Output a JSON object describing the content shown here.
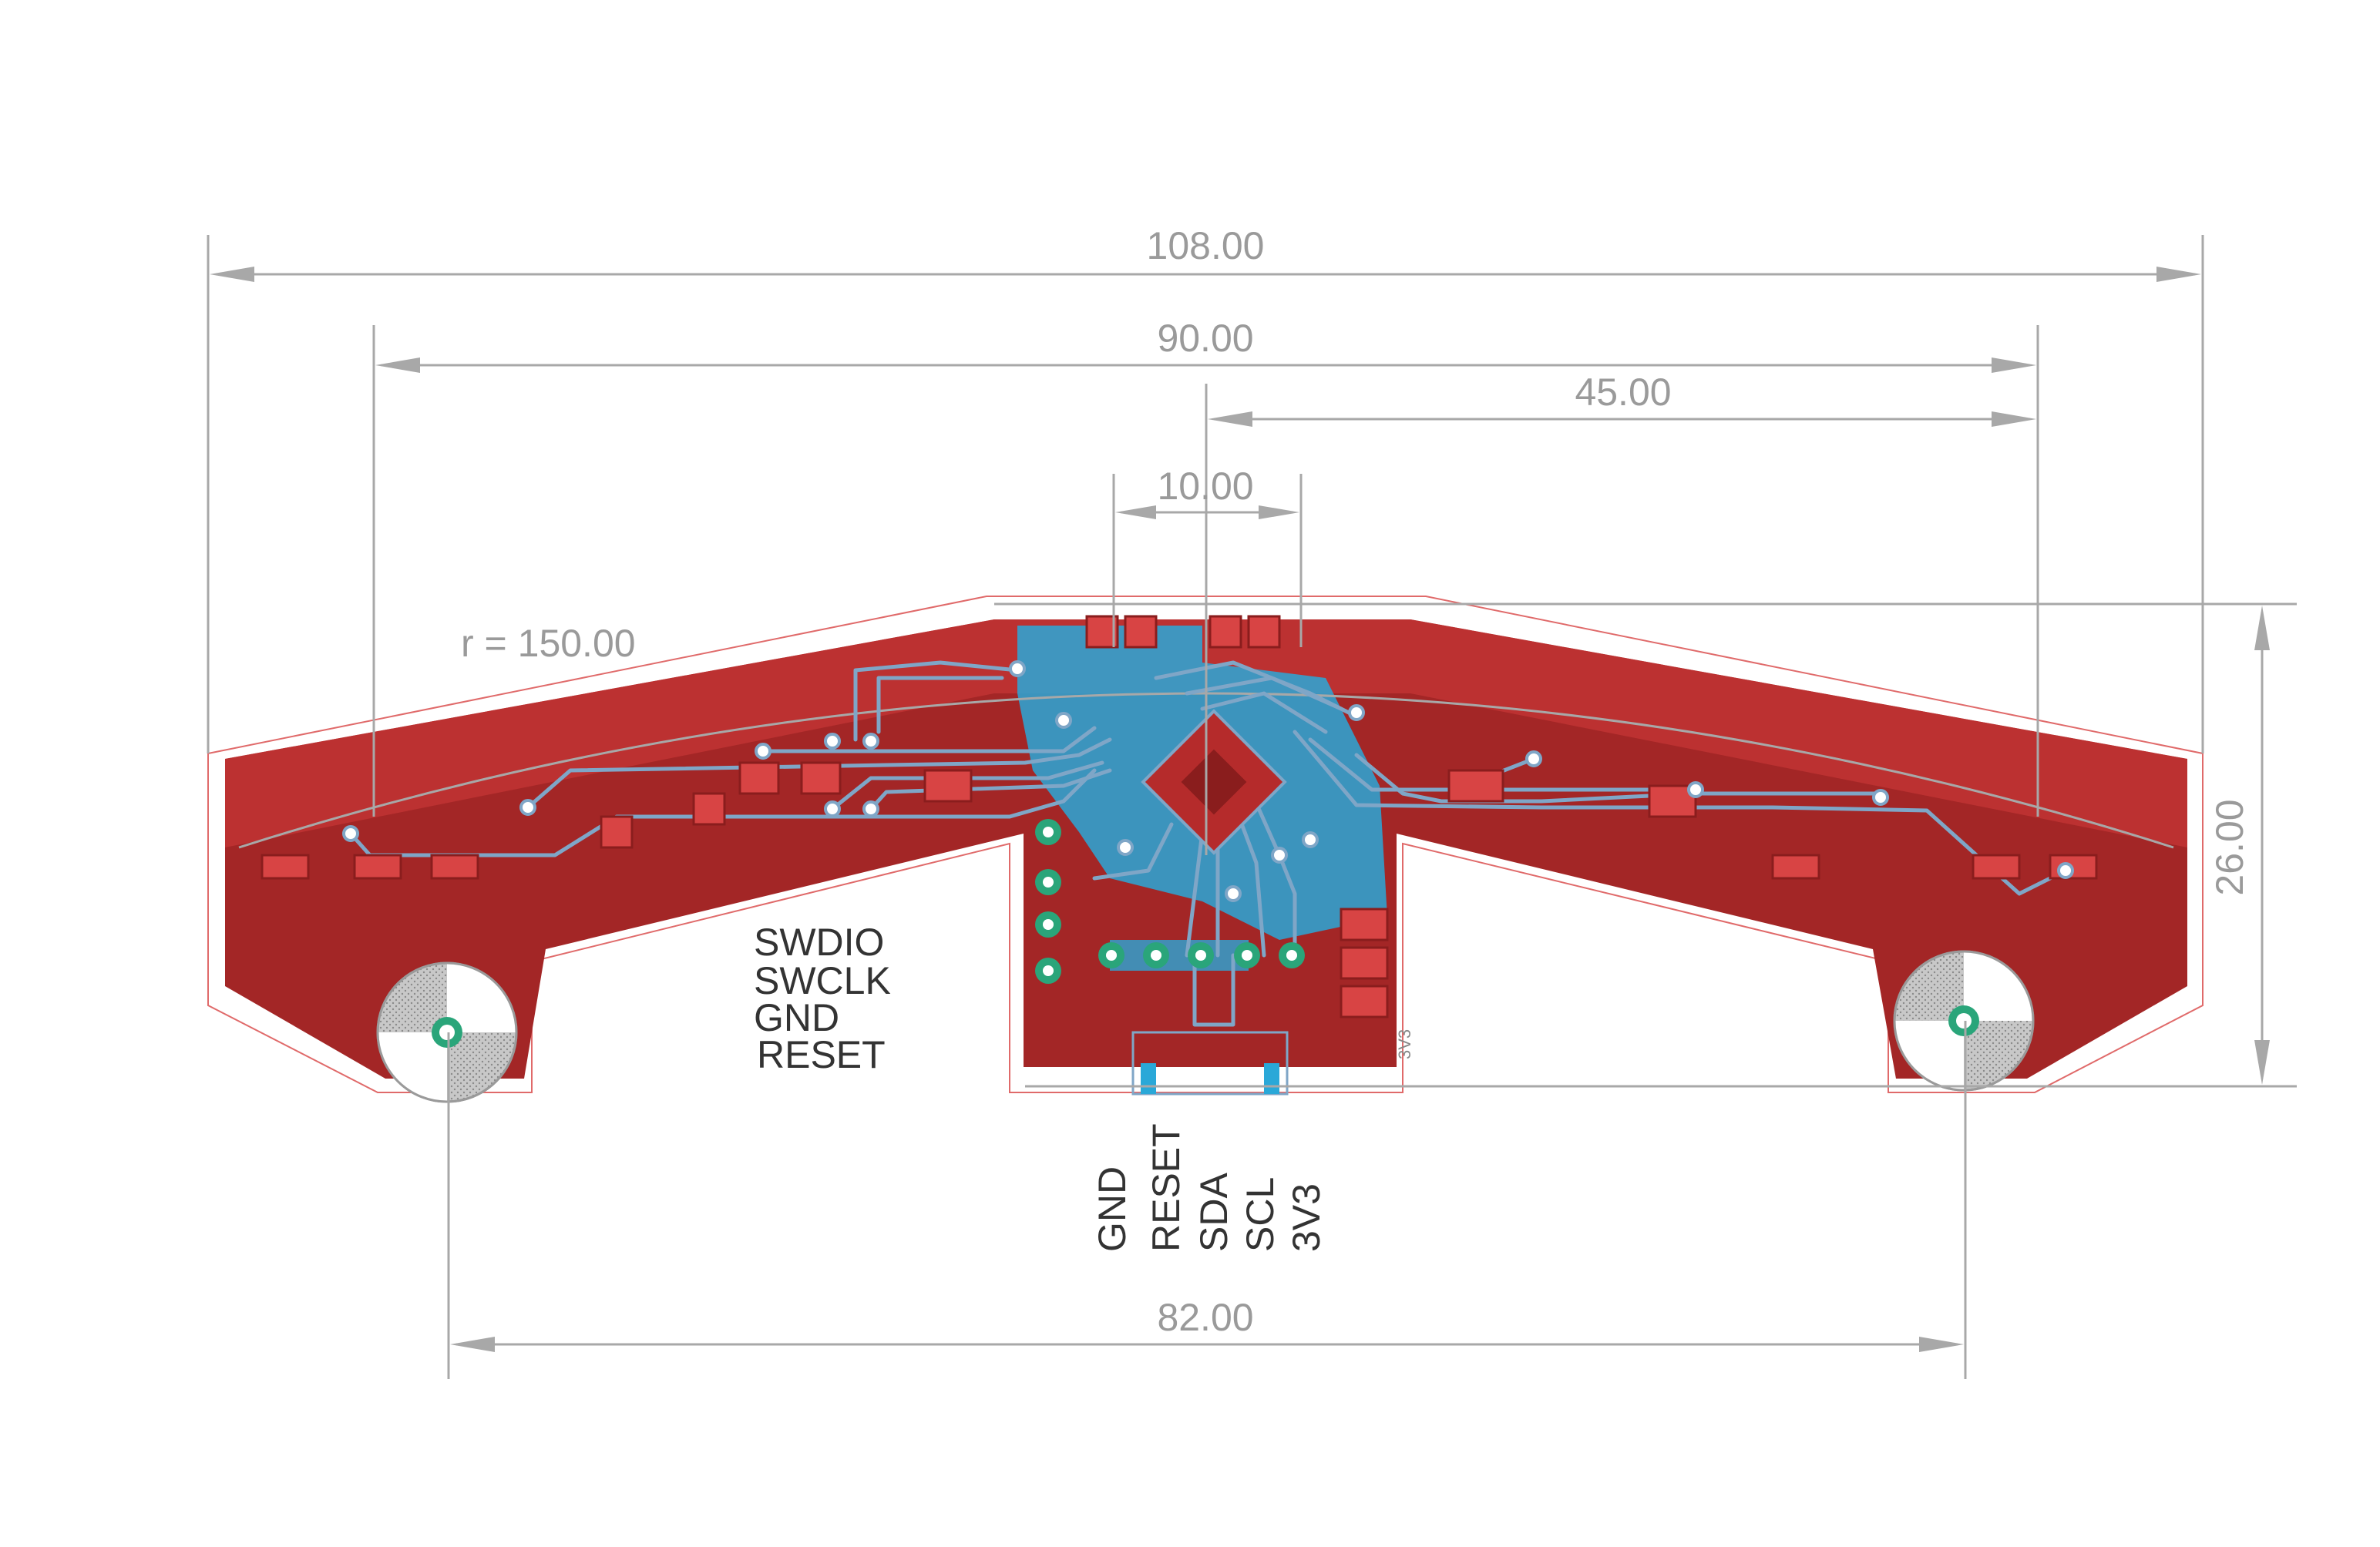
{
  "dimensions": {
    "overall_width": "108.00",
    "sensor_span": "90.00",
    "half_span": "45.00",
    "center_width": "10.00",
    "radius": "r = 150.00",
    "height": "26.00",
    "mount_spacing": "82.00"
  },
  "labels": {
    "swd_header": [
      "SWDIO",
      "SWCLK",
      "GND",
      "RESET"
    ],
    "i2c_header": [
      "GND",
      "RESET",
      "SDA",
      "SCL",
      "3V3"
    ],
    "small_3v3": "3V3"
  },
  "colors": {
    "copper_top": "#b52b2b",
    "copper_fill": "#a32626",
    "copper_bottom": "#2aa8d8",
    "board_outline": "#e06a6a",
    "dimension": "#a8a8a8",
    "silkscreen": "#333333",
    "through_hole": "#2aa57a",
    "mount_ring": "#9a9a9a"
  }
}
